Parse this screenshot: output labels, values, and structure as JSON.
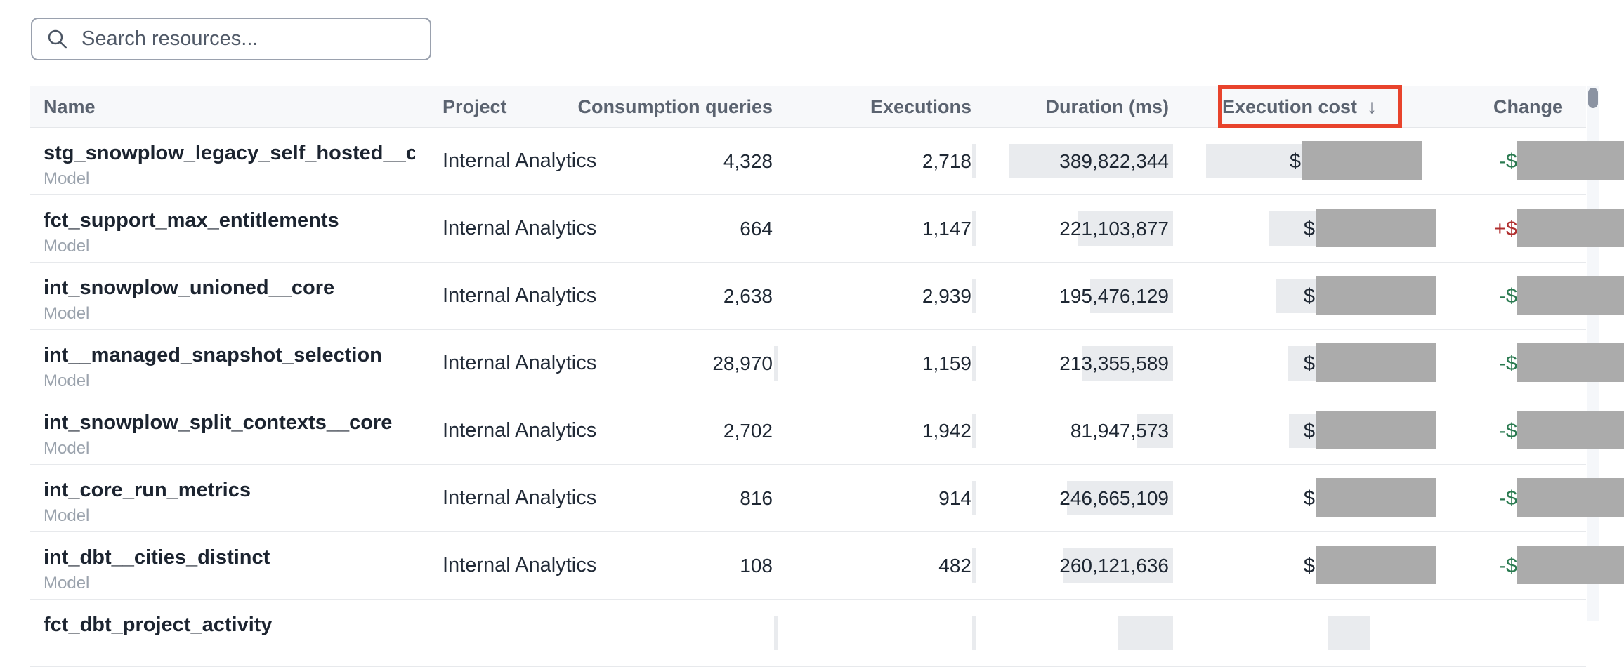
{
  "search": {
    "placeholder": "Search resources..."
  },
  "colors": {
    "accent_red_box": "#e8432c",
    "redaction_gray": "#ababab",
    "heatbar_gray": "#e9ebee",
    "change_down_green": "#2a7a50",
    "change_up_red": "#b02f2f",
    "header_bg": "#f7f8fa"
  },
  "table": {
    "columns": [
      {
        "label": "Name",
        "align": "left"
      },
      {
        "label": "Project",
        "align": "left"
      },
      {
        "label": "Consumption queries",
        "align": "right"
      },
      {
        "label": "Executions",
        "align": "right"
      },
      {
        "label": "Duration (ms)",
        "align": "right"
      },
      {
        "label": "Execution cost",
        "align": "right",
        "sorted": "desc",
        "sort_arrow": "↓",
        "highlighted": true
      },
      {
        "label": "Change",
        "align": "right"
      }
    ],
    "rows": [
      {
        "name": "stg_snowplow_legacy_self_hosted__cor...",
        "type": "Model",
        "project": "Internal Analytics",
        "consumption_queries": "4,328",
        "executions": "2,718",
        "duration_ms": "389,822,344",
        "cost_prefix": "$",
        "cost_redacted": true,
        "change_prefix": "-$",
        "change_direction": "down",
        "change_redacted": true,
        "bars": {
          "consumption": 0,
          "executions": 5,
          "duration": 233,
          "cost": 233
        }
      },
      {
        "name": "fct_support_max_entitlements",
        "type": "Model",
        "project": "Internal Analytics",
        "consumption_queries": "664",
        "executions": "1,147",
        "duration_ms": "221,103,877",
        "cost_prefix": "$",
        "cost_redacted": true,
        "change_prefix": "+$",
        "change_direction": "up",
        "change_redacted": true,
        "bars": {
          "consumption": 0,
          "executions": 5,
          "duration": 136,
          "cost": 143
        }
      },
      {
        "name": "int_snowplow_unioned__core",
        "type": "Model",
        "project": "Internal Analytics",
        "consumption_queries": "2,638",
        "executions": "2,939",
        "duration_ms": "195,476,129",
        "cost_prefix": "$",
        "cost_redacted": true,
        "change_prefix": "-$",
        "change_direction": "down",
        "change_redacted": true,
        "bars": {
          "consumption": 0,
          "executions": 5,
          "duration": 118,
          "cost": 133
        }
      },
      {
        "name": "int__managed_snapshot_selection",
        "type": "Model",
        "project": "Internal Analytics",
        "consumption_queries": "28,970",
        "executions": "1,159",
        "duration_ms": "213,355,589",
        "cost_prefix": "$",
        "cost_redacted": true,
        "change_prefix": "-$",
        "change_direction": "down",
        "change_redacted": true,
        "bars": {
          "consumption": 6,
          "executions": 5,
          "duration": 129,
          "cost": 117
        }
      },
      {
        "name": "int_snowplow_split_contexts__core",
        "type": "Model",
        "project": "Internal Analytics",
        "consumption_queries": "2,702",
        "executions": "1,942",
        "duration_ms": "81,947,573",
        "cost_prefix": "$",
        "cost_redacted": true,
        "change_prefix": "-$",
        "change_direction": "down",
        "change_redacted": true,
        "bars": {
          "consumption": 0,
          "executions": 5,
          "duration": 51,
          "cost": 115
        }
      },
      {
        "name": "int_core_run_metrics",
        "type": "Model",
        "project": "Internal Analytics",
        "consumption_queries": "816",
        "executions": "914",
        "duration_ms": "246,665,109",
        "cost_prefix": "$",
        "cost_redacted": true,
        "change_prefix": "-$",
        "change_direction": "down",
        "change_redacted": true,
        "bars": {
          "consumption": 0,
          "executions": 5,
          "duration": 151,
          "cost": 70
        }
      },
      {
        "name": "int_dbt__cities_distinct",
        "type": "Model",
        "project": "Internal Analytics",
        "consumption_queries": "108",
        "executions": "482",
        "duration_ms": "260,121,636",
        "cost_prefix": "$",
        "cost_redacted": true,
        "change_prefix": "-$",
        "change_direction": "down",
        "change_redacted": true,
        "bars": {
          "consumption": 0,
          "executions": 5,
          "duration": 157,
          "cost": 65
        }
      },
      {
        "name": "fct_dbt_project_activity",
        "type": "",
        "project": "",
        "consumption_queries": "",
        "executions": "",
        "duration_ms": "",
        "cost_prefix": "",
        "cost_redacted": false,
        "change_prefix": "",
        "change_direction": "down",
        "change_redacted": false,
        "bars": {
          "consumption": 6,
          "executions": 5,
          "duration": 78,
          "cost": 59
        }
      }
    ]
  }
}
